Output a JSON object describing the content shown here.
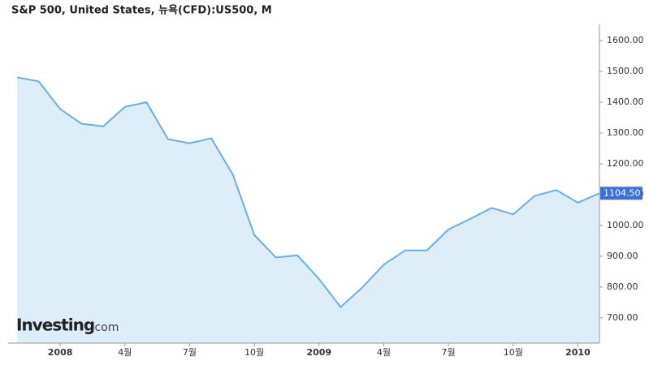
{
  "chart_data": {
    "type": "area",
    "title": "S&P 500, United States, 뉴욕(CFD):US500, M",
    "watermark": {
      "brand": "Investing",
      "suffix": ".com"
    },
    "categories": [
      null,
      null,
      "2008",
      null,
      null,
      "4월",
      null,
      null,
      "7월",
      null,
      null,
      "10월",
      null,
      null,
      "2009",
      null,
      null,
      "4월",
      null,
      null,
      "7월",
      null,
      null,
      "10월",
      null,
      null,
      "2010",
      null
    ],
    "series": [
      {
        "name": "S&P 500",
        "color": "#6aaee6",
        "fill": "#ddeef9",
        "values": [
          1481,
          1468,
          1378,
          1330,
          1322,
          1385,
          1400,
          1280,
          1267,
          1283,
          1166,
          969,
          896,
          903,
          826,
          735,
          798,
          873,
          919,
          919,
          987,
          1021,
          1057,
          1036,
          1096,
          1115,
          1074,
          1104.5
        ],
        "value_labels": [
          null,
          null,
          null,
          null,
          null,
          null,
          null,
          null,
          null,
          null,
          null,
          null,
          null,
          null,
          null,
          null,
          null,
          null,
          null,
          null,
          null,
          null,
          null,
          null,
          null,
          null,
          null,
          "1104.50"
        ]
      }
    ],
    "ylim": [
      618,
      1653
    ],
    "yticks": [
      {
        "value": 700,
        "label": "700.00"
      },
      {
        "value": 800,
        "label": "800.00"
      },
      {
        "value": 900,
        "label": "900.00"
      },
      {
        "value": 1000,
        "label": "1000.00"
      },
      {
        "value": 1100,
        "label": "1100.00"
      },
      {
        "value": 1200,
        "label": "1200.00"
      },
      {
        "value": 1300,
        "label": "1300.00"
      },
      {
        "value": 1400,
        "label": "1400.00"
      },
      {
        "value": 1500,
        "label": "1500.00"
      },
      {
        "value": 1600,
        "label": "1600.00"
      }
    ],
    "label_color": "#3d6fd8"
  }
}
